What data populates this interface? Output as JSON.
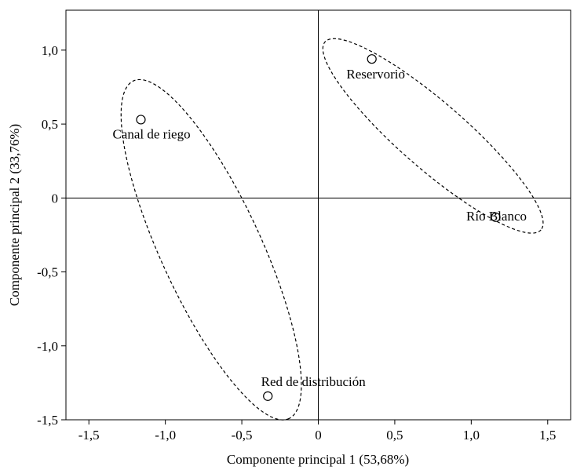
{
  "chart_data": {
    "type": "scatter",
    "xlabel": "Componente principal 1 (53,68%)",
    "ylabel": "Componente principal 2 (33,76%)",
    "xlim": [
      -1.65,
      1.65
    ],
    "ylim": [
      -1.5,
      1.27
    ],
    "grid": false,
    "reference_lines": {
      "x": 0,
      "y": 0
    },
    "x_ticks": [
      -1.5,
      -1.0,
      -0.5,
      0,
      0.5,
      1.0,
      1.5
    ],
    "x_tick_labels": [
      "-1,5",
      "-1,0",
      "-0,5",
      "0",
      "0,5",
      "1,0",
      "1,5"
    ],
    "y_ticks": [
      -1.5,
      -1.0,
      -0.5,
      0,
      0.5,
      1.0
    ],
    "y_tick_labels": [
      "-1,5",
      "-1,0",
      "-0,5",
      "0",
      "0,5",
      "1,0"
    ],
    "points": [
      {
        "label": "Canal de riego",
        "x": -1.16,
        "y": 0.53
      },
      {
        "label": "Red de distribución",
        "x": -0.33,
        "y": -1.34
      },
      {
        "label": "Reservorio",
        "x": 0.35,
        "y": 0.94
      },
      {
        "label": "Río Blanco",
        "x": 1.16,
        "y": -0.13
      }
    ],
    "groups": [
      {
        "members": [
          "Canal de riego",
          "Red de distribución"
        ],
        "center": [
          -0.7,
          -0.35
        ],
        "radius_x": 1.25,
        "radius_y": 0.33,
        "angle_deg": -66
      },
      {
        "members": [
          "Reservorio",
          "Río Blanco"
        ],
        "center": [
          0.75,
          0.42
        ],
        "radius_x": 0.95,
        "radius_y": 0.22,
        "angle_deg": -42
      }
    ],
    "colors": {
      "line": "#000000",
      "marker_fill": "#ffffff",
      "background": "#ffffff"
    }
  }
}
